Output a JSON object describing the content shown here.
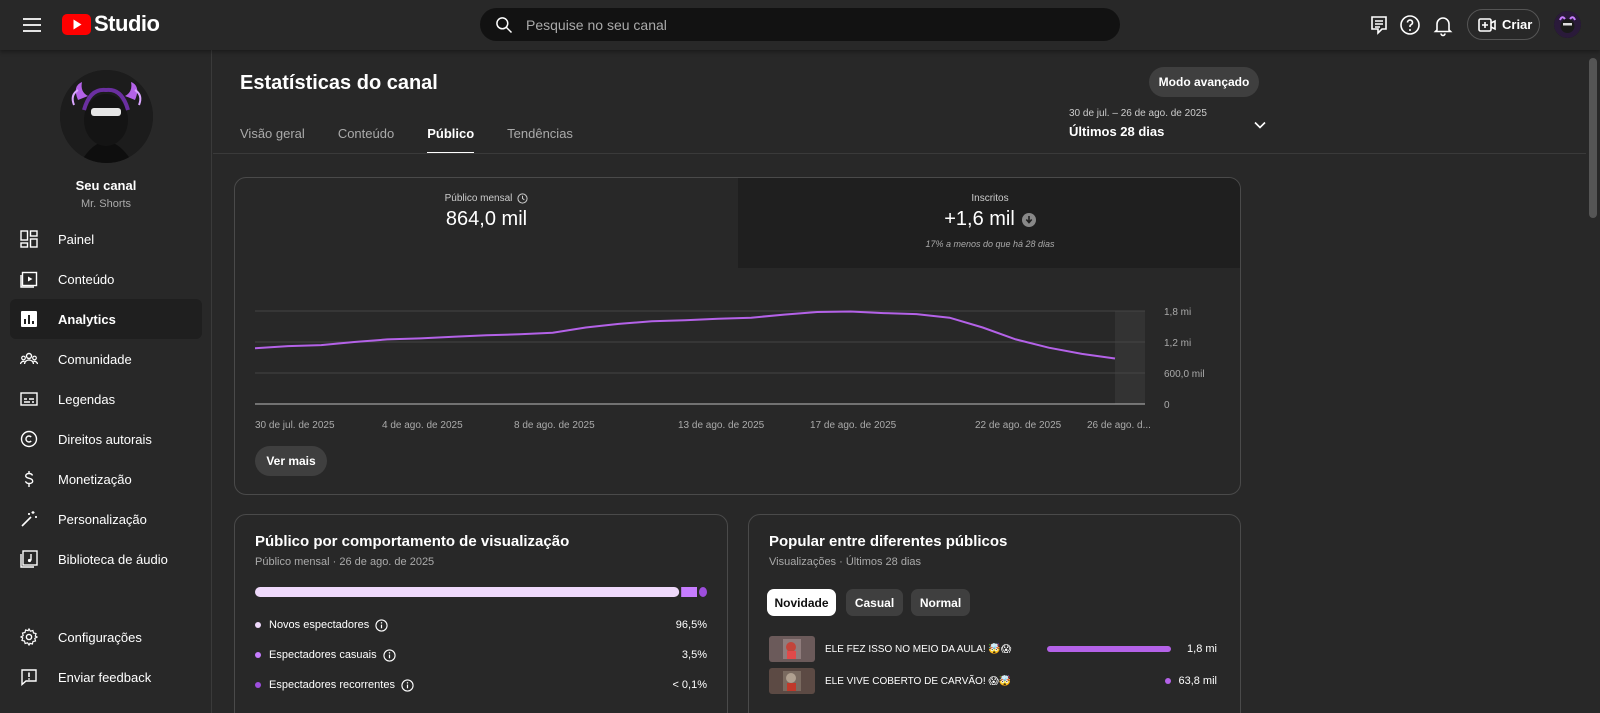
{
  "header": {
    "logo_text": "Studio",
    "search_placeholder": "Pesquise no seu canal",
    "create_label": "Criar"
  },
  "sidebar": {
    "channel_name": "Seu canal",
    "channel_handle": "Mr. Shorts",
    "items": [
      {
        "label": "Painel",
        "icon": "dashboard-icon"
      },
      {
        "label": "Conteúdo",
        "icon": "content-icon"
      },
      {
        "label": "Analytics",
        "icon": "analytics-icon",
        "active": true
      },
      {
        "label": "Comunidade",
        "icon": "community-icon"
      },
      {
        "label": "Legendas",
        "icon": "subtitles-icon"
      },
      {
        "label": "Direitos autorais",
        "icon": "copyright-icon"
      },
      {
        "label": "Monetização",
        "icon": "monetization-icon"
      },
      {
        "label": "Personalização",
        "icon": "customization-icon"
      },
      {
        "label": "Biblioteca de áudio",
        "icon": "audio-library-icon"
      }
    ],
    "bottom_items": [
      {
        "label": "Configurações",
        "icon": "settings-icon"
      },
      {
        "label": "Enviar feedback",
        "icon": "feedback-icon"
      }
    ]
  },
  "page": {
    "title": "Estatísticas do canal",
    "advanced_mode_label": "Modo avançado",
    "tabs": [
      "Visão geral",
      "Conteúdo",
      "Público",
      "Tendências"
    ],
    "active_tab": "Público",
    "date_range": {
      "dates": "30 de jul. – 26 de ago. de 2025",
      "label": "Últimos 28 dias"
    }
  },
  "overview": {
    "monthly_audience": {
      "label": "Público mensal",
      "value": "864,0 mil"
    },
    "subscribers": {
      "label": "Inscritos",
      "value": "+1,6 mil",
      "note": "17% a menos do que há 28 dias"
    },
    "more_label": "Ver mais"
  },
  "chart_data": {
    "type": "line",
    "x_labels": [
      "30 de jul. de 2025",
      "4 de ago. de 2025",
      "8 de ago. de 2025",
      "13 de ago. de 2025",
      "17 de ago. de 2025",
      "22 de ago. de 2025",
      "26 de ago. d..."
    ],
    "y_ticks": [
      "1,8 mi",
      "1,2 mi",
      "600,0 mil",
      "0"
    ],
    "ylim": [
      0,
      1800000
    ],
    "grid": true,
    "series": [
      {
        "values": [
          1080000,
          1120000,
          1140000,
          1200000,
          1250000,
          1270000,
          1300000,
          1330000,
          1350000,
          1380000,
          1480000,
          1550000,
          1600000,
          1620000,
          1650000,
          1670000,
          1730000,
          1780000,
          1790000,
          1760000,
          1740000,
          1670000,
          1480000,
          1250000,
          1090000,
          970000,
          880000
        ],
        "color": "#b462e8"
      }
    ]
  },
  "behavior": {
    "title": "Público por comportamento de visualização",
    "subtitle": "Público mensal · 26 de ago. de 2025",
    "segments": [
      {
        "label": "Novos espectadores",
        "value": "96,5%",
        "fraction": 0.965,
        "color": "#efd9fb"
      },
      {
        "label": "Espectadores casuais",
        "value": "3,5%",
        "fraction": 0.035,
        "color": "#c77dff"
      },
      {
        "label": "Espectadores recorrentes",
        "value": "< 0,1%",
        "fraction": 0.001,
        "color": "#9d4edd"
      }
    ]
  },
  "popular": {
    "title": "Popular entre diferentes públicos",
    "subtitle": "Visualizações · Últimos 28 dias",
    "chips": [
      "Novidade",
      "Casual",
      "Normal"
    ],
    "active_chip": "Novidade",
    "videos": [
      {
        "title": "ELE FEZ ISSO NO MEIO DA AULA! 🤯😱",
        "value": "1,8 mi",
        "fraction": 1.0
      },
      {
        "title": "ELE VIVE COBERTO DE CARVÃO! 😱🤯",
        "value": "63,8 mil",
        "fraction": 0.035
      }
    ]
  },
  "colors": {
    "accent": "#b462e8",
    "background": "#282828",
    "logo_red": "#ff0000"
  }
}
